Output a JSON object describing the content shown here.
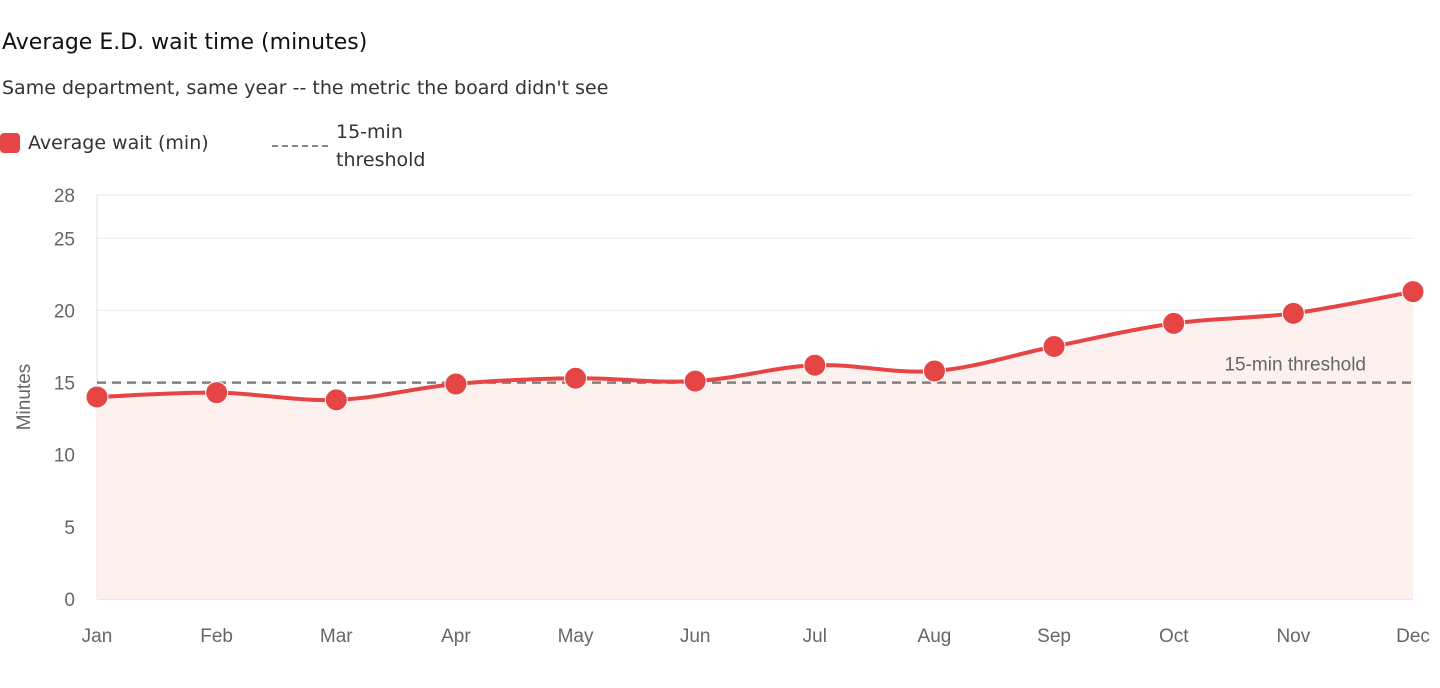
{
  "title": "Average E.D. wait time (minutes)",
  "subtitle": "Same department, same year -- the metric the board didn't see",
  "legend": {
    "series_label": "Average wait (min)",
    "threshold_line1": "15-min",
    "threshold_line2": "threshold"
  },
  "colors": {
    "series": "#e64545",
    "fill": "#fdf1f0",
    "threshold": "#808080",
    "grid": "#ebebeb"
  },
  "chart_data": {
    "type": "line",
    "title": "Average E.D. wait time (minutes)",
    "subtitle": "Same department, same year -- the metric the board didn't see",
    "xlabel": "",
    "ylabel": "Minutes",
    "categories": [
      "Jan",
      "Feb",
      "Mar",
      "Apr",
      "May",
      "Jun",
      "Jul",
      "Aug",
      "Sep",
      "Oct",
      "Nov",
      "Dec"
    ],
    "series": [
      {
        "name": "Average wait (min)",
        "values": [
          14.0,
          14.3,
          13.8,
          14.9,
          15.3,
          15.1,
          16.2,
          15.8,
          17.5,
          19.1,
          19.8,
          21.3
        ],
        "filled": true
      }
    ],
    "threshold": {
      "name": "15-min threshold",
      "value": 15
    },
    "yticks": [
      0,
      5,
      10,
      15,
      20,
      25,
      28
    ],
    "ylim": [
      0,
      28
    ],
    "grid": true,
    "legend_position": "top-left"
  }
}
